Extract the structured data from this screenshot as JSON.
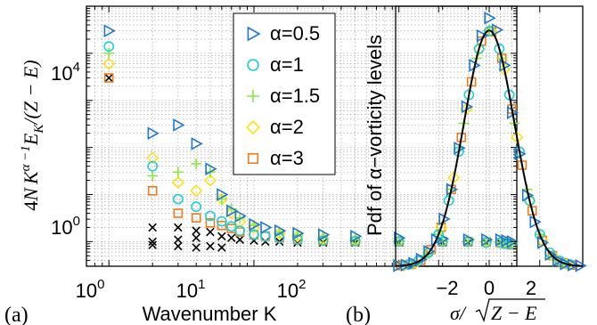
{
  "chart_data": [
    {
      "type": "scatter",
      "panel_label": "(a)",
      "xlabel": "Wavenumber K",
      "ylabel": "4N K^{α−1}E_K/(Z − E)",
      "ylabel_parts": {
        "prefix": "4",
        "N": "N",
        "K": "K",
        "exp": "α −1",
        "E": "E",
        "sub": "K",
        "denominator": "/(Z − E)"
      },
      "x_scale": "log",
      "y_scale": "log",
      "xlim": [
        0.7,
        650
      ],
      "ylim": [
        0.3,
        100000
      ],
      "xticks": [
        {
          "base": "10",
          "exp": "0"
        },
        {
          "base": "10",
          "exp": "1"
        },
        {
          "base": "10",
          "exp": "2"
        }
      ],
      "yticks": [
        {
          "base": "10",
          "exp": "0"
        },
        {
          "base": "10",
          "exp": "4"
        }
      ],
      "grid": true,
      "legend_position": "top-right",
      "series": [
        {
          "name": "α=0.5",
          "marker": "triangle-right",
          "color": "#1f77d0",
          "x": [
            1,
            2,
            3,
            4,
            5,
            6,
            7,
            8,
            10,
            12,
            15,
            20,
            30,
            50,
            100,
            200,
            300,
            400,
            500,
            550,
            600
          ],
          "y": [
            30000,
            200,
            300,
            120,
            35,
            10,
            4.5,
            3.5,
            2.3,
            2,
            1.7,
            1.5,
            1.4,
            1.3,
            1.2,
            1.15,
            1.1,
            1.1,
            1.1,
            1.05,
            1.0
          ]
        },
        {
          "name": "α=1",
          "marker": "circle",
          "color": "#1ecfd8",
          "x": [
            1,
            2,
            3,
            4,
            5,
            6,
            7,
            8,
            10,
            12,
            15,
            20,
            30,
            50,
            100,
            200,
            300,
            400,
            500,
            550,
            600
          ],
          "y": [
            14000,
            40,
            8,
            5.5,
            3.5,
            2.7,
            2.1,
            1.7,
            1.4,
            1.3,
            1.2,
            1.1,
            1.05,
            1.02,
            1.0,
            1.0,
            1.0,
            0.95,
            0.95,
            0.9,
            0.9
          ]
        },
        {
          "name": "α=1.5",
          "marker": "plus",
          "color": "#88e840",
          "x": [
            1,
            2,
            3,
            4,
            5,
            6,
            7,
            8,
            10,
            15,
            20,
            30,
            50,
            100,
            200,
            300,
            400,
            500,
            550,
            600
          ],
          "y": [
            10000,
            25,
            30,
            45,
            30,
            8,
            5,
            3.2,
            2.2,
            1.6,
            1.4,
            1.2,
            1.1,
            1.05,
            1.0,
            1.0,
            1.0,
            0.97,
            0.95,
            0.92
          ]
        },
        {
          "name": "α=2",
          "marker": "diamond",
          "color": "#ffe11a",
          "x": [
            1,
            2,
            3,
            4,
            5,
            6,
            7,
            8,
            10,
            15,
            20,
            30,
            50,
            100,
            200,
            300,
            400,
            500,
            550,
            600
          ],
          "y": [
            6000,
            60,
            18,
            12,
            20,
            8,
            4,
            2.6,
            2,
            1.5,
            1.3,
            1.15,
            1.08,
            1.04,
            1.0,
            1.0,
            1.0,
            0.98,
            0.96,
            0.93
          ]
        },
        {
          "name": "α=3",
          "marker": "square",
          "color": "#ee7c1a",
          "x": [
            1,
            2,
            3,
            4,
            5,
            6,
            7,
            8,
            10,
            12,
            15,
            20,
            30,
            50,
            100,
            200,
            300,
            400,
            500,
            550,
            600
          ],
          "y": [
            3000,
            12,
            4,
            3.2,
            2.5,
            2.2,
            1.9,
            1.6,
            1.4,
            1.3,
            1.2,
            1.1,
            1.05,
            1.02,
            1.0,
            1.0,
            1.0,
            0.98,
            0.95,
            0.9,
            0.85
          ]
        },
        {
          "name": "",
          "marker": "cross",
          "color": "#000000",
          "x": [
            1,
            2,
            2,
            2,
            3,
            3,
            3,
            4,
            4,
            4,
            5,
            5,
            6,
            6,
            7,
            8,
            10,
            12,
            15,
            20,
            30,
            50,
            100,
            200,
            300,
            400,
            500
          ],
          "y": [
            3000,
            2,
            1,
            0.85,
            2,
            1.1,
            0.8,
            1.7,
            1.2,
            0.75,
            1.6,
            0.8,
            1.3,
            0.75,
            1.2,
            1.1,
            1.05,
            1.0,
            1.0,
            0.95,
            0.95,
            0.95,
            0.95,
            0.95,
            0.95,
            0.95,
            0.95
          ]
        }
      ]
    },
    {
      "type": "scatter",
      "panel_label": "(b)",
      "xlabel": "σ/√(Z − E)",
      "xlabel_parts": {
        "num": "σ/",
        "radicand": "Z − E"
      },
      "ylabel": "Pdf of α−vorticity levels",
      "xlim": [
        -3.7,
        3.7
      ],
      "ylim": [
        0,
        0.44
      ],
      "xticks": [
        {
          "value": -2,
          "label": "−2"
        },
        {
          "value": 0,
          "label": "0"
        },
        {
          "value": 2,
          "label": "2"
        }
      ],
      "grid": true,
      "fit_curve": {
        "type": "gaussian",
        "mean": 0,
        "std": 1,
        "color": "#000000"
      },
      "series": [
        {
          "name": "α=0.5",
          "marker": "triangle-right",
          "color": "#1f77d0",
          "x": [
            -3.6,
            -3.3,
            -3.0,
            -2.7,
            -2.4,
            -2.1,
            -1.8,
            -1.5,
            -1.2,
            -0.9,
            -0.6,
            -0.3,
            0,
            0.3,
            0.6,
            0.9,
            1.2,
            1.5,
            1.8,
            2.1,
            2.4,
            2.7,
            3.0,
            3.3,
            3.6
          ],
          "y": [
            0.001,
            0.002,
            0.005,
            0.012,
            0.025,
            0.045,
            0.08,
            0.13,
            0.2,
            0.27,
            0.34,
            0.39,
            0.42,
            0.4,
            0.34,
            0.26,
            0.19,
            0.12,
            0.075,
            0.04,
            0.02,
            0.01,
            0.004,
            0.002,
            0.001
          ]
        },
        {
          "name": "α=1",
          "marker": "circle",
          "color": "#1ecfd8",
          "x": [
            -3.2,
            -2.8,
            -2.4,
            -2.0,
            -1.6,
            -1.2,
            -0.8,
            -0.4,
            0,
            0.4,
            0.8,
            1.2,
            1.6,
            2.0,
            2.4,
            2.8,
            3.2
          ],
          "y": [
            0.003,
            0.009,
            0.023,
            0.054,
            0.111,
            0.194,
            0.29,
            0.368,
            0.398,
            0.368,
            0.29,
            0.194,
            0.111,
            0.054,
            0.023,
            0.009,
            0.003
          ]
        },
        {
          "name": "α=1.5",
          "marker": "plus",
          "color": "#88e840",
          "x": [
            -3.0,
            -2.5,
            -2.0,
            -1.5,
            -1.0,
            -0.5,
            0,
            0.5,
            1.0,
            1.5,
            2.0,
            2.5,
            3.0
          ],
          "y": [
            0.004,
            0.018,
            0.054,
            0.13,
            0.242,
            0.352,
            0.399,
            0.352,
            0.242,
            0.13,
            0.054,
            0.018,
            0.004
          ]
        },
        {
          "name": "α=2",
          "marker": "diamond",
          "color": "#ffe11a",
          "x": [
            -3.4,
            -2.9,
            -2.4,
            -1.9,
            -1.4,
            -0.9,
            -0.4,
            0.1,
            0.6,
            1.1,
            1.6,
            2.1,
            2.6,
            3.1
          ],
          "y": [
            0.001,
            0.006,
            0.022,
            0.066,
            0.15,
            0.266,
            0.368,
            0.397,
            0.333,
            0.218,
            0.111,
            0.044,
            0.014,
            0.003
          ]
        },
        {
          "name": "α=3",
          "marker": "square",
          "color": "#ee7c1a",
          "x": [
            -3.5,
            -3.1,
            -2.7,
            -2.3,
            -1.9,
            -1.5,
            -1.1,
            -0.7,
            -0.3,
            0.1,
            0.5,
            0.9,
            1.3,
            1.7,
            2.1,
            2.5,
            2.9,
            3.3
          ],
          "y": [
            0.001,
            0.003,
            0.01,
            0.028,
            0.066,
            0.13,
            0.218,
            0.312,
            0.381,
            0.397,
            0.352,
            0.266,
            0.171,
            0.094,
            0.044,
            0.018,
            0.006,
            0.002
          ]
        }
      ]
    }
  ]
}
